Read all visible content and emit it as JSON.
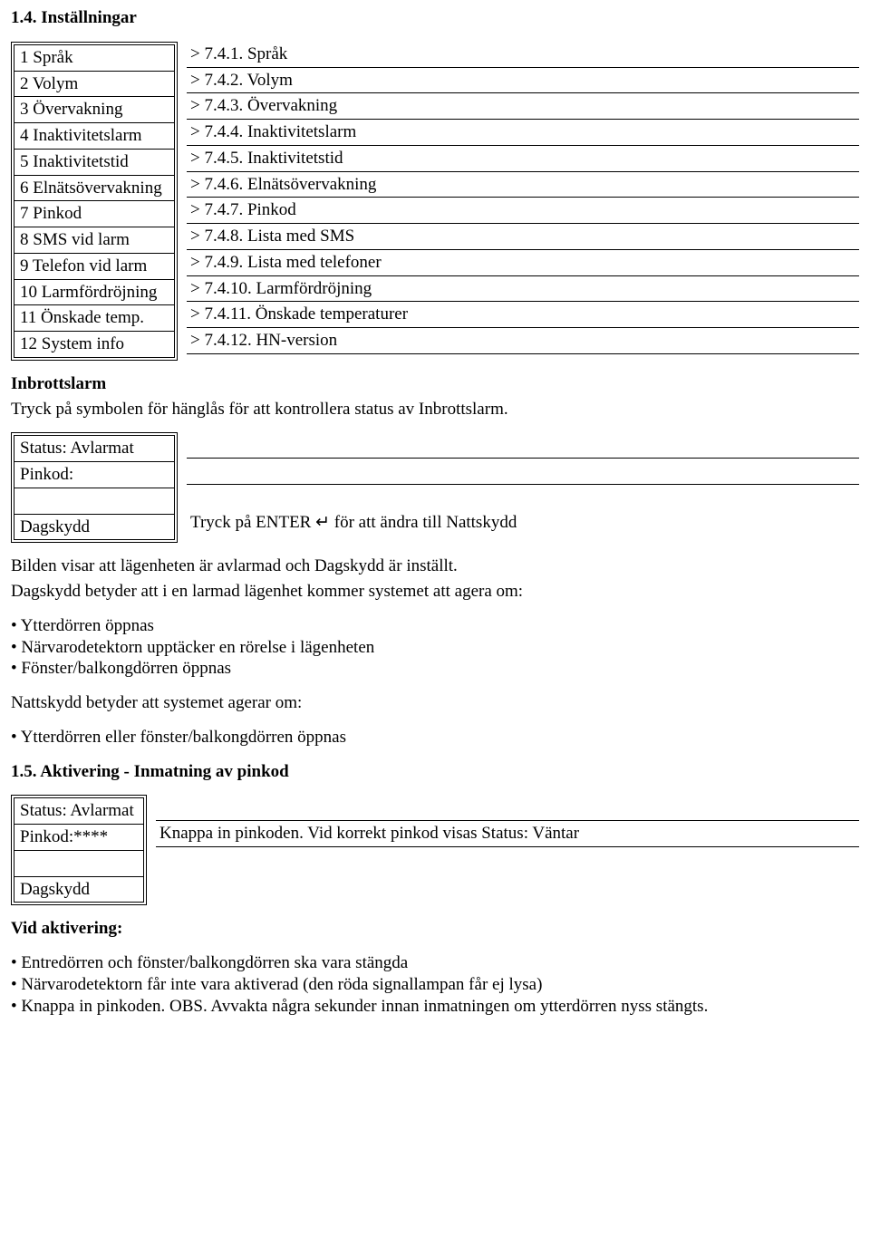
{
  "heading_1_4": "1.4. Inställningar",
  "settings": {
    "left": [
      "1 Språk",
      "2 Volym",
      "3 Övervakning",
      "4 Inaktivitetslarm",
      "5 Inaktivitetstid",
      "6 Elnätsövervakning",
      "7 Pinkod",
      "8 SMS vid larm",
      "9 Telefon vid larm",
      "10 Larmfördröjning",
      "11 Önskade temp.",
      "12 System info"
    ],
    "right": [
      "> 7.4.1. Språk",
      "> 7.4.2. Volym",
      "> 7.4.3. Övervakning",
      "> 7.4.4. Inaktivitetslarm",
      "> 7.4.5. Inaktivitetstid",
      "> 7.4.6. Elnätsövervakning",
      "> 7.4.7. Pinkod",
      "> 7.4.8. Lista med SMS",
      "> 7.4.9. Lista med telefoner",
      "> 7.4.10. Larmfördröjning",
      "> 7.4.11. Önskade temperaturer",
      "> 7.4.12. HN-version"
    ]
  },
  "inbrotts_heading": "Inbrottslarm",
  "inbrotts_text": "Tryck på symbolen för hänglås för att kontrollera status av Inbrottslarm.",
  "alarm1": {
    "left": [
      "Status: Avlarmat",
      "Pinkod:",
      "",
      "Dagskydd"
    ],
    "right": [
      "",
      "",
      "",
      "Tryck på ENTER ↵ för att ändra till Nattskydd"
    ]
  },
  "para_bilden": "Bilden visar att lägenheten är avlarmad och Dagskydd är inställt.",
  "para_dagskydd": "Dagskydd betyder att i en larmad lägenhet kommer systemet att agera om:",
  "bullets_dag": [
    "Ytterdörren öppnas",
    "Närvarodetektorn upptäcker en rörelse i lägenheten",
    "Fönster/balkongdörren öppnas"
  ],
  "para_nattskydd": "Nattskydd betyder att systemet agerar om:",
  "bullets_natt": [
    "Ytterdörren eller fönster/balkongdörren öppnas"
  ],
  "heading_1_5": "1.5. Aktivering - Inmatning av pinkod",
  "alarm2": {
    "left": [
      "Status: Avlarmat",
      "Pinkod:****",
      "",
      "Dagskydd"
    ],
    "right": [
      "",
      "Knappa in pinkoden. Vid korrekt pinkod visas Status: Väntar",
      "",
      ""
    ]
  },
  "vid_aktivering": "Vid aktivering:",
  "bullets_aktivering": [
    "Entredörren och fönster/balkongdörren ska vara stängda",
    "Närvarodetektorn får inte vara aktiverad (den röda signallampan får ej lysa)",
    "Knappa in pinkoden. OBS. Avvakta några sekunder innan inmatningen om ytterdörren nyss stängts."
  ]
}
